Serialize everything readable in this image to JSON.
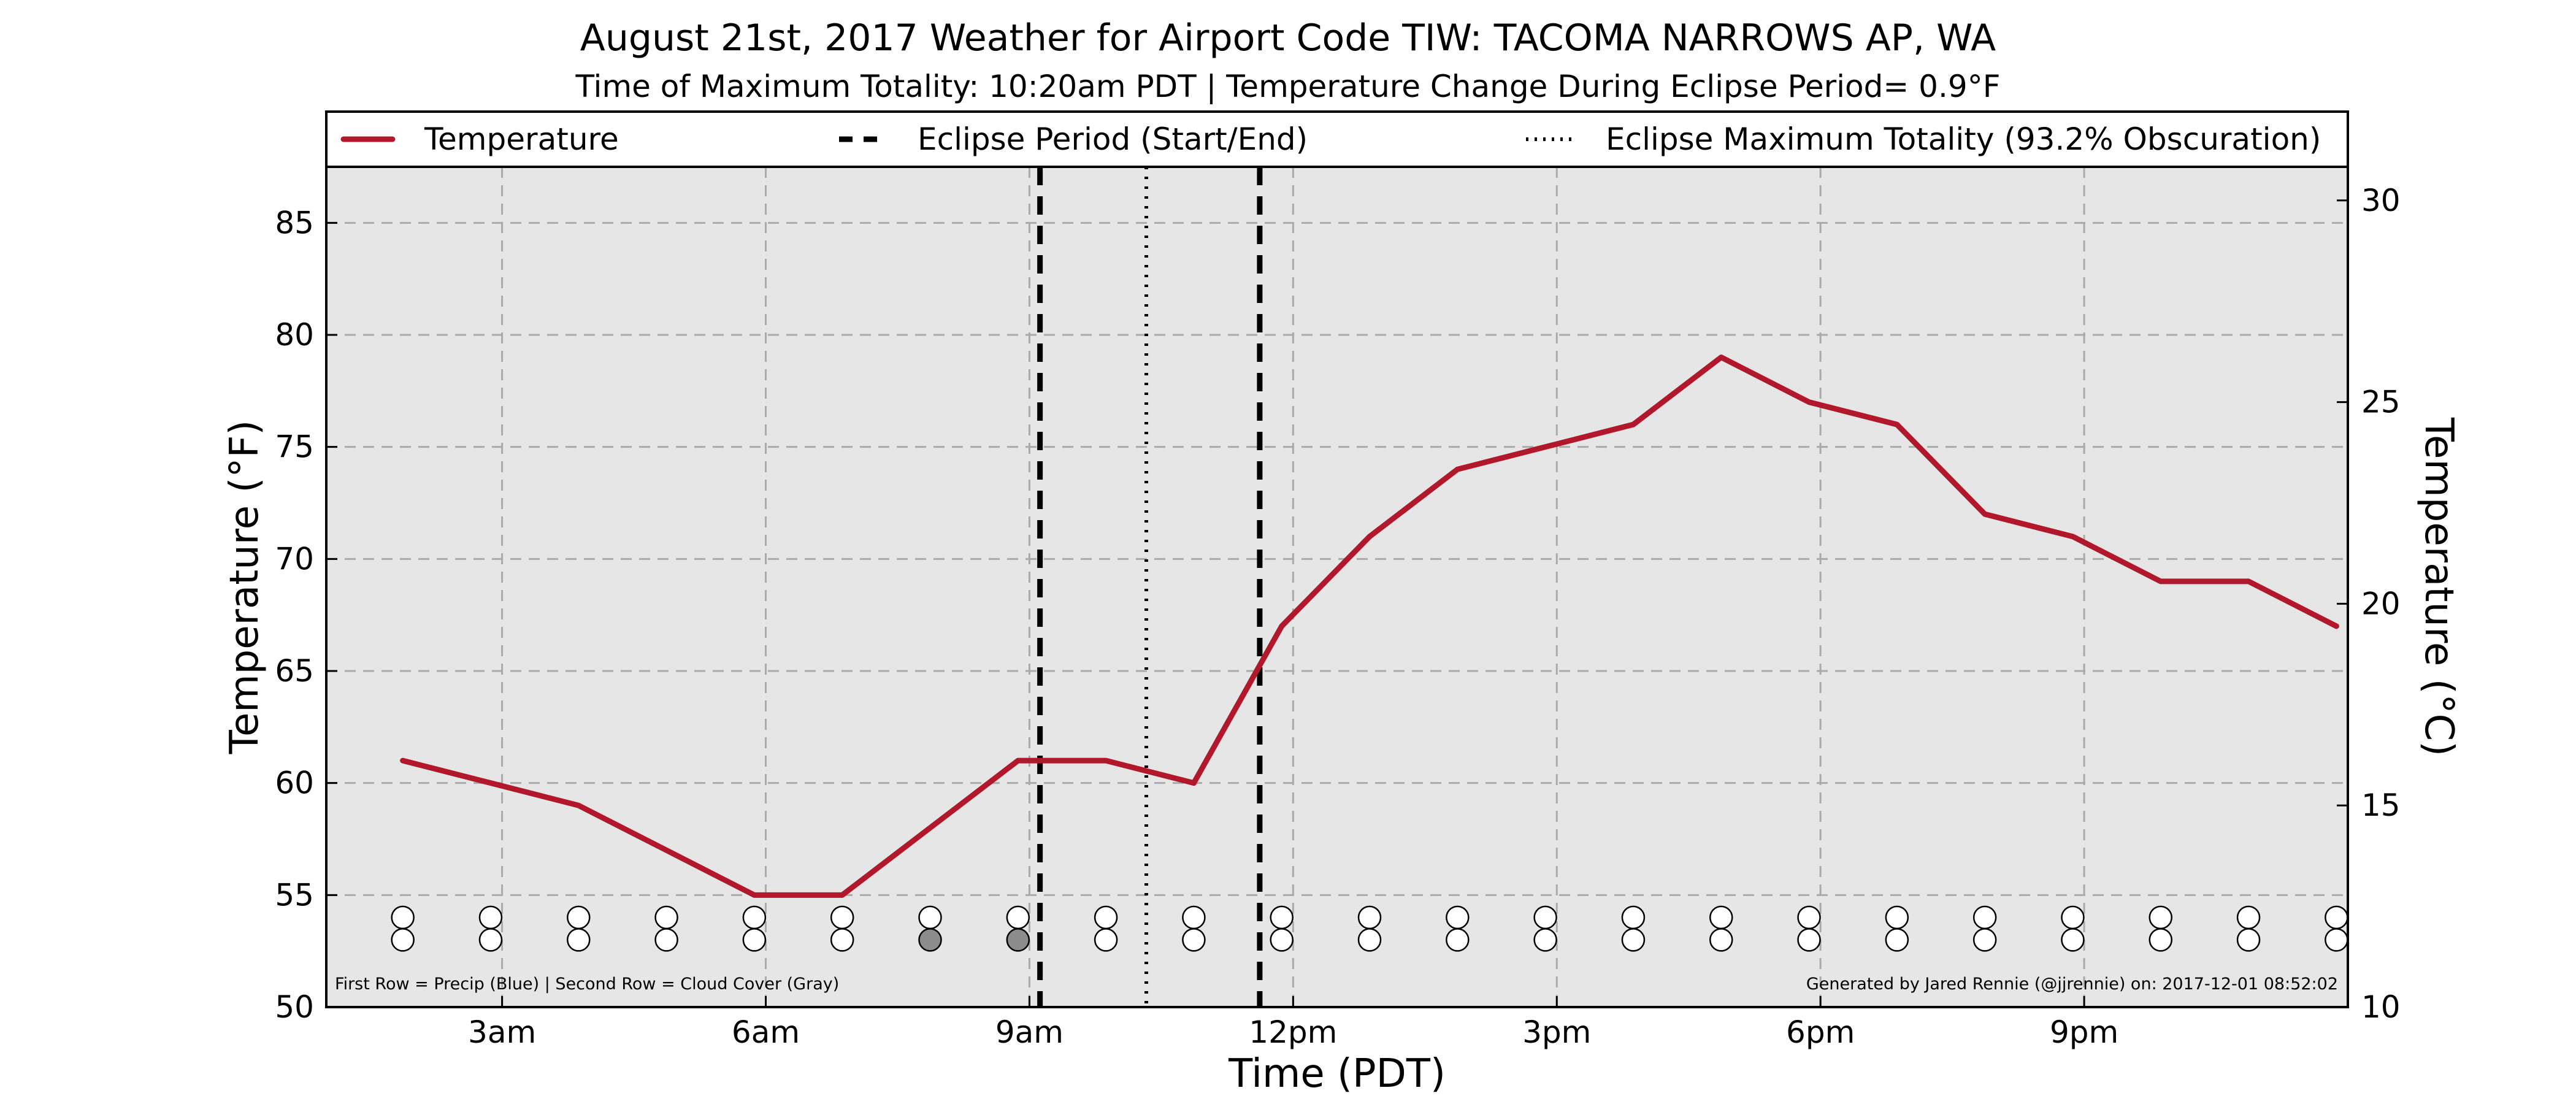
{
  "chart_data": {
    "type": "line",
    "title": "August 21st, 2017 Weather for Airport Code TIW: TACOMA NARROWS AP, WA",
    "subtitle": "Time of Maximum Totality: 10:20am PDT | Temperature Change During Eclipse Period= 0.9°F",
    "xlabel": "Time (PDT)",
    "ylabel": "Temperature (°F)",
    "y2label": "Temperature (°C)",
    "xlim": [
      1.0,
      24.0
    ],
    "ylim": [
      50,
      87.5
    ],
    "y2lim": [
      10,
      30.833
    ],
    "x_ticks": [
      {
        "x": 3,
        "label": "3am"
      },
      {
        "x": 6,
        "label": "6am"
      },
      {
        "x": 9,
        "label": "9am"
      },
      {
        "x": 12,
        "label": "12pm"
      },
      {
        "x": 15,
        "label": "3pm"
      },
      {
        "x": 18,
        "label": "6pm"
      },
      {
        "x": 21,
        "label": "9pm"
      }
    ],
    "y_ticks": [
      50,
      55,
      60,
      65,
      70,
      75,
      80,
      85
    ],
    "y2_ticks": [
      10,
      15,
      20,
      25,
      30
    ],
    "grid": true,
    "legend_position": "top",
    "legend": [
      {
        "label": "Temperature",
        "style": "solid"
      },
      {
        "label": "Eclipse Period (Start/End)",
        "style": "dashed"
      },
      {
        "label": "Eclipse Maximum Totality (93.2% Obscuration)",
        "style": "dotted"
      }
    ],
    "series": [
      {
        "name": "Temperature",
        "color": "#b2182b",
        "x": [
          1.87,
          2.87,
          3.87,
          4.87,
          5.87,
          6.87,
          7.87,
          8.87,
          9.87,
          10.87,
          11.87,
          12.87,
          13.87,
          14.87,
          15.87,
          16.87,
          17.87,
          18.87,
          19.87,
          20.87,
          21.87,
          22.87,
          23.87
        ],
        "values": [
          61,
          60,
          59,
          57,
          55,
          55,
          58,
          61,
          61,
          60,
          67,
          71,
          74,
          75,
          76,
          79,
          77,
          76,
          72,
          71,
          69,
          69,
          67
        ]
      }
    ],
    "eclipse": {
      "start": 9.12,
      "end": 11.62,
      "max_totality": 10.33
    },
    "indicator_rows": {
      "x": [
        1.87,
        2.87,
        3.87,
        4.87,
        5.87,
        6.87,
        7.87,
        8.87,
        9.87,
        10.87,
        11.87,
        12.87,
        13.87,
        14.87,
        15.87,
        16.87,
        17.87,
        18.87,
        19.87,
        20.87,
        21.87,
        22.87,
        23.87
      ],
      "precip_y": 54.0,
      "cloud_y": 53.0,
      "precip_fill": [
        "#ffffff",
        "#ffffff",
        "#ffffff",
        "#ffffff",
        "#ffffff",
        "#ffffff",
        "#ffffff",
        "#ffffff",
        "#ffffff",
        "#ffffff",
        "#ffffff",
        "#ffffff",
        "#ffffff",
        "#ffffff",
        "#ffffff",
        "#ffffff",
        "#ffffff",
        "#ffffff",
        "#ffffff",
        "#ffffff",
        "#ffffff",
        "#ffffff",
        "#ffffff"
      ],
      "cloud_fill": [
        "#ffffff",
        "#ffffff",
        "#ffffff",
        "#ffffff",
        "#ffffff",
        "#ffffff",
        "#8c8c8c",
        "#8c8c8c",
        "#ffffff",
        "#ffffff",
        "#ffffff",
        "#ffffff",
        "#ffffff",
        "#ffffff",
        "#ffffff",
        "#ffffff",
        "#ffffff",
        "#ffffff",
        "#ffffff",
        "#ffffff",
        "#ffffff",
        "#ffffff",
        "#ffffff"
      ]
    },
    "notes": {
      "left": "First Row = Precip (Blue) | Second Row = Cloud Cover (Gray)",
      "right": "Generated by Jared Rennie (@jjrennie) on: 2017-12-01 08:52:02"
    }
  }
}
